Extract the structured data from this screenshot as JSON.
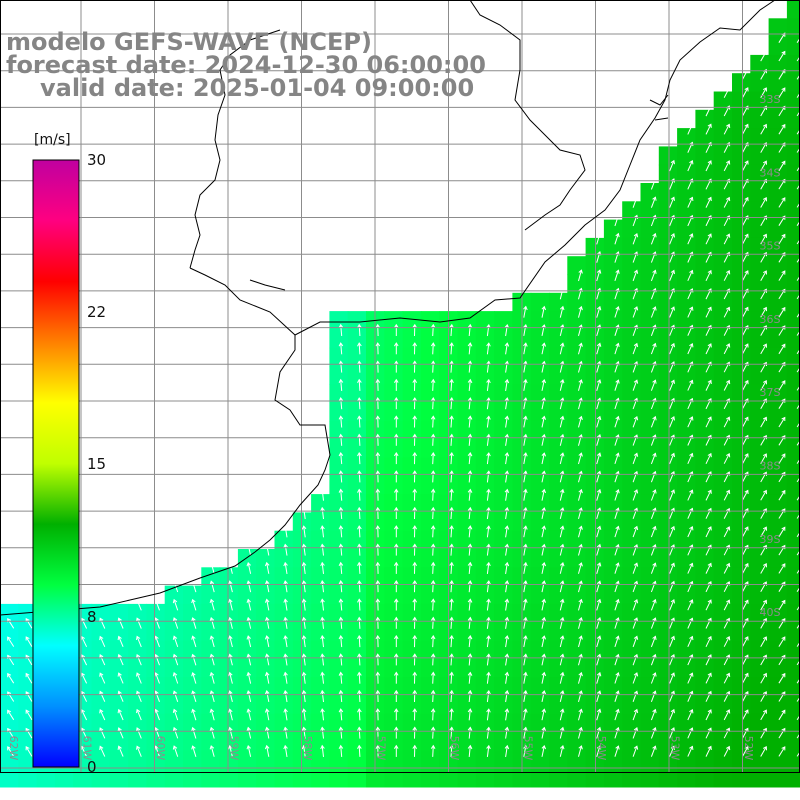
{
  "title": {
    "model": "modelo GEFS-WAVE (NCEP)",
    "forecast": "forecast date: 2024-12-30 06:00:00",
    "valid": "valid date: 2025-01-04 09:00:00"
  },
  "colorbar": {
    "unit": "[m/s]",
    "ticks": [
      "30",
      "22",
      "15",
      "8",
      "0"
    ],
    "colors": [
      "#0000ff",
      "#0090ff",
      "#00ffff",
      "#00ff40",
      "#00b000",
      "#c0ff00",
      "#ffff00",
      "#ff8000",
      "#ff0000",
      "#ff0080",
      "#c000a0"
    ]
  },
  "map": {
    "lat_labels": [
      "33S",
      "34S",
      "35S",
      "36S",
      "37S",
      "38S",
      "39S",
      "40S"
    ],
    "lon_labels": [
      "62W",
      "61W",
      "60W",
      "59W",
      "58W",
      "57W",
      "56W",
      "55W",
      "54W",
      "53W",
      "52W"
    ],
    "land_color": "#ffffff",
    "grid_color": "#8c8c8c",
    "coast_color": "#000000",
    "vector_color": "#ffffff"
  }
}
